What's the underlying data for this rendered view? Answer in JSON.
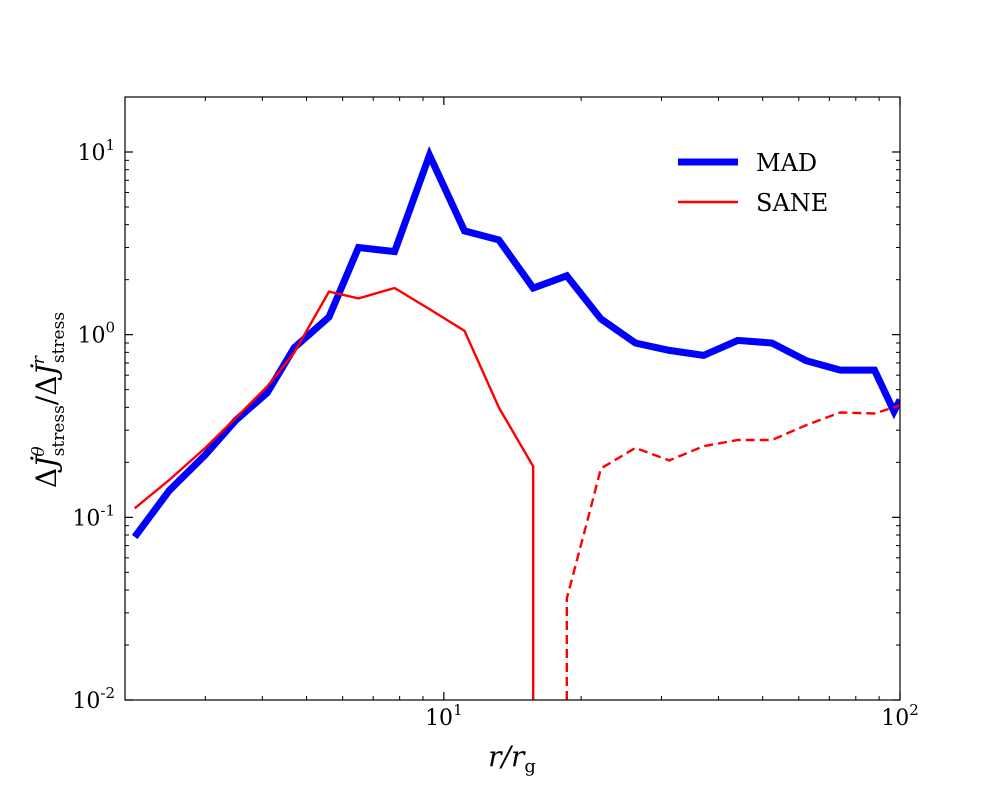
{
  "chart_data": {
    "type": "line",
    "xscale": "log",
    "yscale": "log",
    "xlim": [
      2.0,
      100
    ],
    "ylim": [
      0.01,
      20
    ],
    "xlabel": "r/r_g",
    "ylabel": "ΔJ̇θ_stress/ΔJ̇r_stress",
    "x_ticks": [
      {
        "value": 10,
        "base": "10",
        "exp": "1"
      },
      {
        "value": 100,
        "base": "10",
        "exp": "2"
      }
    ],
    "y_ticks": [
      {
        "value": 0.01,
        "base": "10",
        "exp": "-2"
      },
      {
        "value": 0.1,
        "base": "10",
        "exp": "-1"
      },
      {
        "value": 1,
        "base": "10",
        "exp": "0"
      },
      {
        "value": 10,
        "base": "10",
        "exp": "1"
      }
    ],
    "legend_position": "top-right",
    "series": [
      {
        "name": "MAD",
        "color": "#0000ff",
        "style": "solid",
        "x": [
          2.1,
          2.5,
          3.0,
          3.5,
          4.1,
          4.7,
          5.6,
          6.5,
          7.8,
          9.3,
          11.1,
          13.2,
          15.7,
          18.6,
          22.1,
          26.3,
          31.2,
          37.1,
          44.1,
          52.4,
          62.3,
          74.0,
          87.9,
          97.0,
          100.0
        ],
        "y": [
          0.078,
          0.14,
          0.22,
          0.34,
          0.48,
          0.85,
          1.25,
          3.0,
          2.85,
          9.6,
          3.7,
          3.3,
          1.8,
          2.1,
          1.22,
          0.9,
          0.82,
          0.77,
          0.93,
          0.9,
          0.72,
          0.64,
          0.64,
          0.38,
          0.44
        ]
      },
      {
        "name": "SANE",
        "color": "#ff0000",
        "style": "solid",
        "x": [
          2.1,
          2.5,
          3.0,
          3.5,
          4.1,
          4.7,
          5.6,
          6.5,
          7.8,
          9.3,
          11.1,
          13.2,
          15.7,
          15.7
        ],
        "y": [
          0.112,
          0.16,
          0.24,
          0.35,
          0.52,
          0.8,
          1.72,
          1.58,
          1.8,
          1.38,
          1.05,
          0.4,
          0.19,
          0.01
        ]
      },
      {
        "name": "",
        "color": "#ff0000",
        "style": "dashed",
        "x": [
          18.6,
          18.6,
          20.5,
          22.1,
          26.3,
          31.2,
          37.1,
          44.1,
          52.4,
          62.3,
          74.0,
          87.9,
          100.0
        ],
        "y": [
          0.01,
          0.036,
          0.09,
          0.185,
          0.24,
          0.205,
          0.245,
          0.265,
          0.265,
          0.32,
          0.375,
          0.37,
          0.41
        ]
      }
    ],
    "legend": [
      {
        "label": "MAD",
        "color": "#0000ff",
        "width": 7
      },
      {
        "label": "SANE",
        "color": "#ff0000",
        "width": 2.4
      }
    ]
  }
}
